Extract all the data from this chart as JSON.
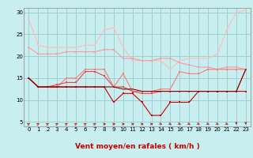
{
  "bg_color": "#c8eef0",
  "grid_color": "#99cccc",
  "xlabel": "Vent moyen/en rafales ( km/h )",
  "xlim": [
    -0.5,
    23.5
  ],
  "ylim": [
    4,
    31
  ],
  "yticks": [
    5,
    10,
    15,
    20,
    25,
    30
  ],
  "xticks": [
    0,
    1,
    2,
    3,
    4,
    5,
    6,
    7,
    8,
    9,
    10,
    11,
    12,
    13,
    14,
    15,
    16,
    17,
    18,
    19,
    20,
    21,
    22,
    23
  ],
  "hours": [
    0,
    1,
    2,
    3,
    4,
    5,
    6,
    7,
    8,
    9,
    10,
    11,
    12,
    13,
    14,
    15,
    16,
    17,
    18,
    19,
    20,
    21,
    22,
    23
  ],
  "line1_color": "#ffbbbb",
  "line2_color": "#ff9999",
  "line3_color": "#ff7777",
  "line4_color": "#ee4444",
  "line5_color": "#cc0000",
  "line6_color": "#880000",
  "line1": [
    28.5,
    22.5,
    22,
    22,
    22,
    22,
    22.5,
    22.5,
    26,
    26.5,
    22,
    19,
    19,
    19,
    19,
    17,
    19,
    19.5,
    19.5,
    19.5,
    20.5,
    26,
    30,
    30.5
  ],
  "line2": [
    22,
    20.5,
    20.5,
    20.5,
    21,
    21,
    21,
    21,
    21.5,
    21.5,
    19.5,
    19.5,
    19,
    19,
    19.5,
    19.5,
    18.5,
    18,
    17.5,
    17.5,
    17,
    17.5,
    17.5,
    17
  ],
  "line3": [
    15,
    13,
    13,
    13,
    15,
    15,
    17,
    17,
    17,
    13,
    16,
    12,
    12,
    12,
    12.5,
    12.5,
    16.5,
    16,
    16,
    17,
    17,
    17,
    17,
    17
  ],
  "line4": [
    15,
    13,
    13,
    13.5,
    14,
    14,
    16.5,
    16.5,
    15.5,
    13,
    13,
    12,
    11.5,
    11.5,
    12,
    12,
    12,
    12,
    12,
    12,
    12,
    12,
    12,
    17
  ],
  "line5": [
    15,
    13,
    13,
    13,
    13,
    13,
    13,
    13,
    13,
    9.5,
    11.5,
    11.5,
    9.5,
    6.5,
    6.5,
    9.5,
    9.5,
    9.5,
    12,
    12,
    12,
    12,
    12,
    12
  ],
  "line6": [
    15,
    13,
    13,
    13,
    13,
    13,
    13,
    13,
    13,
    13,
    12.5,
    12.5,
    12,
    12,
    12,
    12,
    12,
    12,
    12,
    12,
    12,
    12,
    12,
    17
  ],
  "wind_dirs_deg": [
    45,
    45,
    45,
    45,
    45,
    45,
    45,
    45,
    90,
    90,
    90,
    90,
    90,
    90,
    135,
    135,
    135,
    135,
    135,
    135,
    135,
    135,
    180,
    180
  ]
}
